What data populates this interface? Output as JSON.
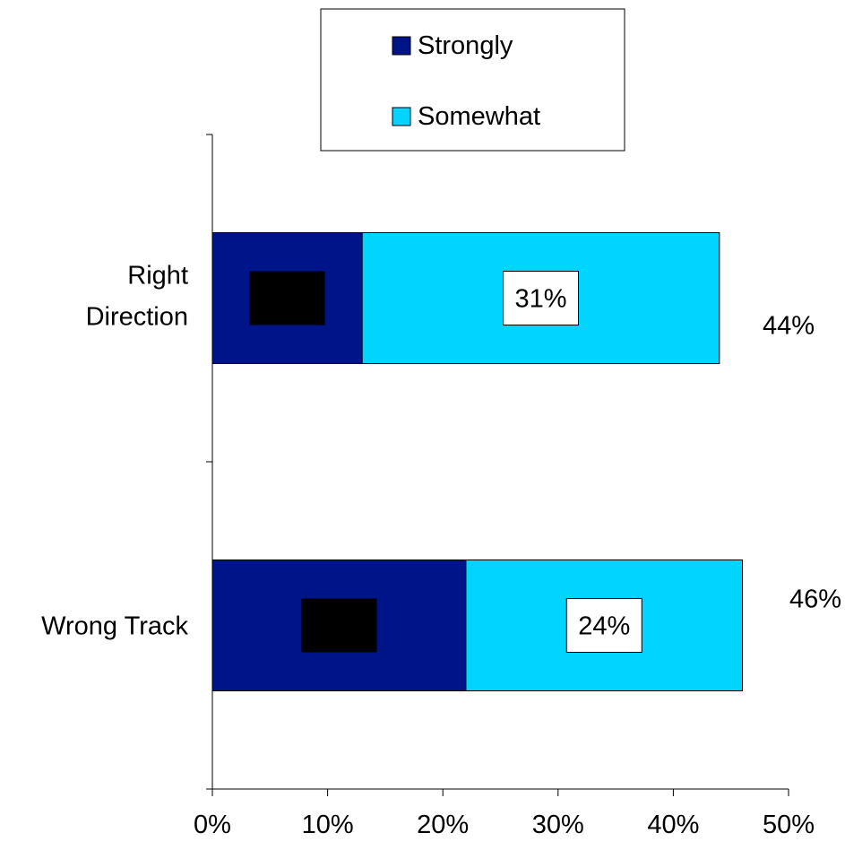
{
  "chart_data": {
    "type": "bar",
    "orientation": "horizontal",
    "stacked": true,
    "categories": [
      "Right Direction",
      "Wrong Track"
    ],
    "series": [
      {
        "name": "Strongly",
        "values": [
          13,
          22
        ],
        "color": "#001489",
        "labels": [
          "",
          ""
        ]
      },
      {
        "name": "Somewhat",
        "values": [
          31,
          24
        ],
        "color": "#00D4FF",
        "labels": [
          "31%",
          "24%"
        ]
      }
    ],
    "totals": [
      "44%",
      "46%"
    ],
    "xlim": [
      0,
      50
    ],
    "xticks": [
      "0%",
      "10%",
      "20%",
      "30%",
      "40%",
      "50%"
    ],
    "legend": {
      "position": "top",
      "entries": [
        "Strongly",
        "Somewhat"
      ]
    },
    "grid": false,
    "notes": "Data labels for the Strongly segments are covered by black boxes in the original."
  }
}
